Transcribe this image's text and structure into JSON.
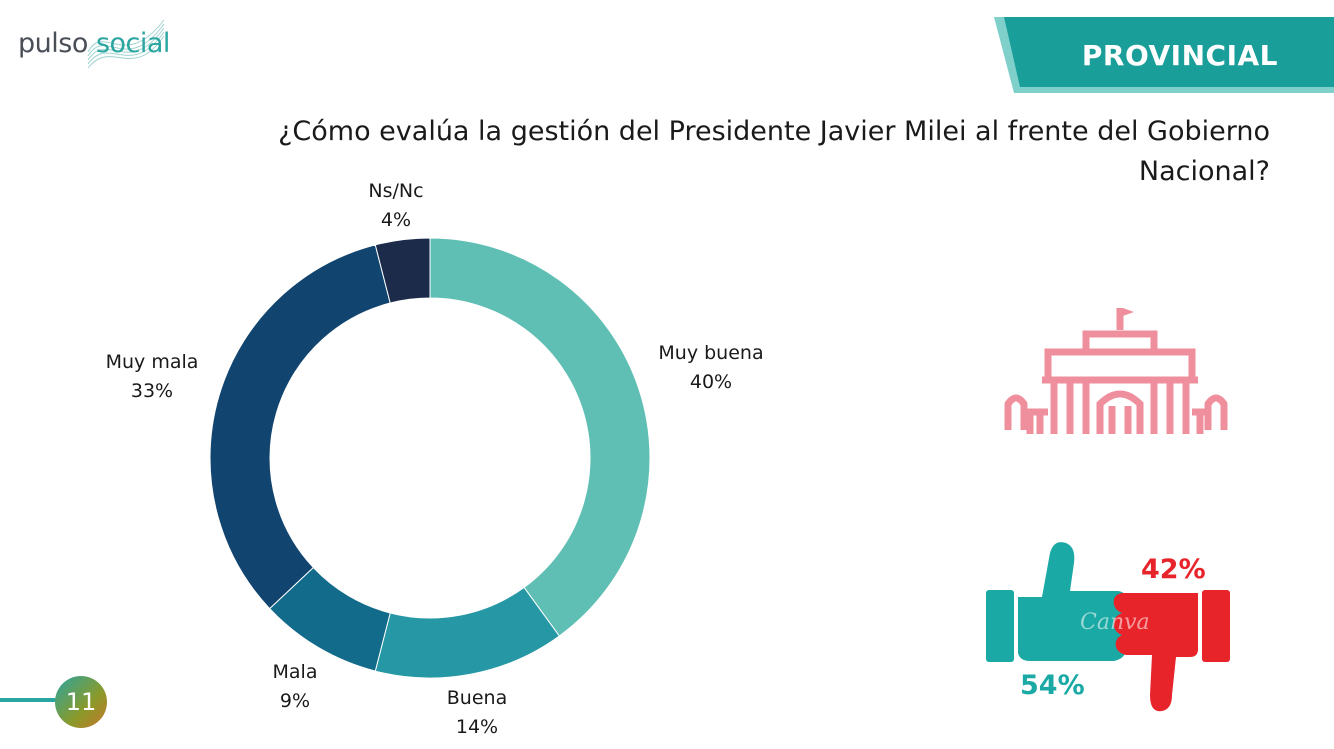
{
  "brand": {
    "part1": "pulso",
    "part2": "social"
  },
  "banner": {
    "label": "PROVINCIAL",
    "color": "#1a9e9a"
  },
  "question": "¿Cómo evalúa la gestión del Presidente Javier Milei al frente del Gobierno Nacional?",
  "icons": {
    "building": "casa-rosada-icon",
    "thumbs": "thumbs-up-down-icon"
  },
  "summary": {
    "positive": "54%",
    "negative": "42%",
    "positive_color": "#1aa9a4",
    "negative_color": "#e8242b"
  },
  "page_number": "11",
  "chart_data": {
    "type": "pie",
    "donut": true,
    "categories": [
      "Muy buena",
      "Buena",
      "Mala",
      "Muy mala",
      "Ns/Nc"
    ],
    "values": [
      40,
      14,
      9,
      33,
      4
    ],
    "value_labels": [
      "40%",
      "14%",
      "9%",
      "33%",
      "4%"
    ],
    "colors": [
      "#5fbfb4",
      "#2597a5",
      "#126b8a",
      "#11446f",
      "#1c2b4a"
    ],
    "title": "",
    "legend": "none"
  }
}
